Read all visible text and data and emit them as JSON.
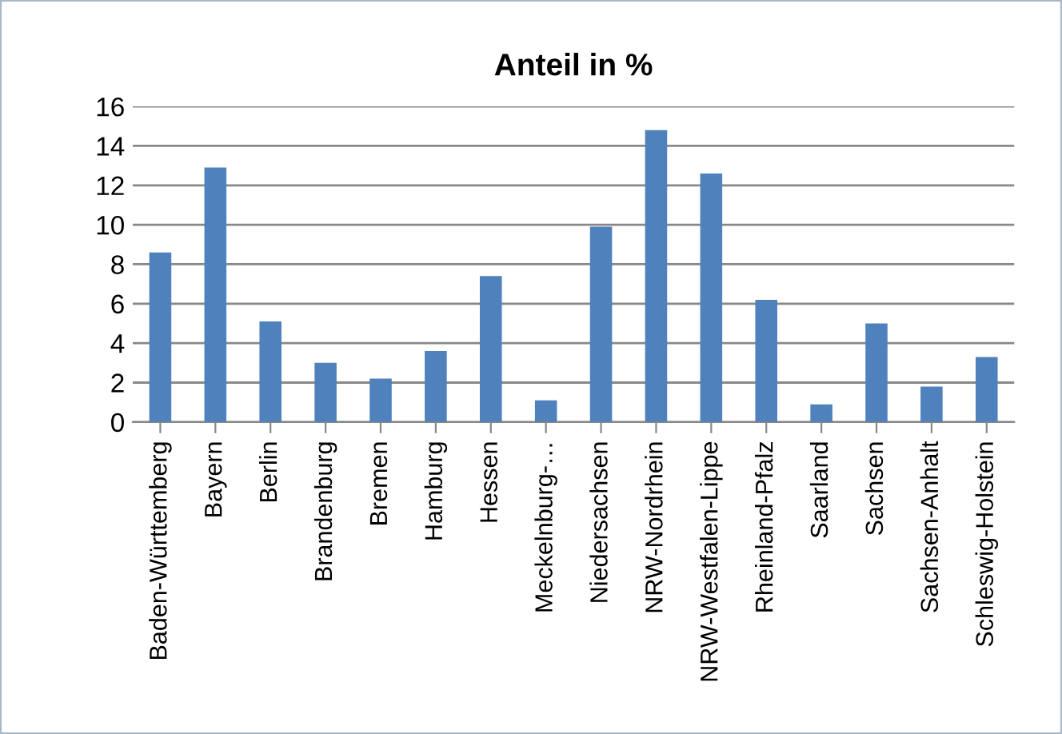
{
  "chart_data": {
    "type": "bar",
    "title": "Anteil in %",
    "categories": [
      "Baden-Württemberg",
      "Bayern",
      "Berlin",
      "Brandenburg",
      "Bremen",
      "Hamburg",
      "Hessen",
      "Meckelnburg-…",
      "Niedersachsen",
      "NRW-Nordrhein",
      "NRW-Westfalen-Lippe",
      "Rheinland-Pfalz",
      "Saarland",
      "Sachsen",
      "Sachsen-Anhalt",
      "Schleswig-Holstein"
    ],
    "values": [
      8.6,
      12.9,
      5.1,
      3.0,
      2.2,
      3.6,
      7.4,
      1.1,
      9.9,
      14.8,
      12.6,
      6.2,
      0.9,
      5.0,
      1.8,
      3.3
    ],
    "color": "#4f81bd",
    "ylim": [
      0,
      16
    ],
    "yticks": [
      0,
      2,
      4,
      6,
      8,
      10,
      12,
      14,
      16
    ],
    "grid": "y",
    "legend": false
  }
}
